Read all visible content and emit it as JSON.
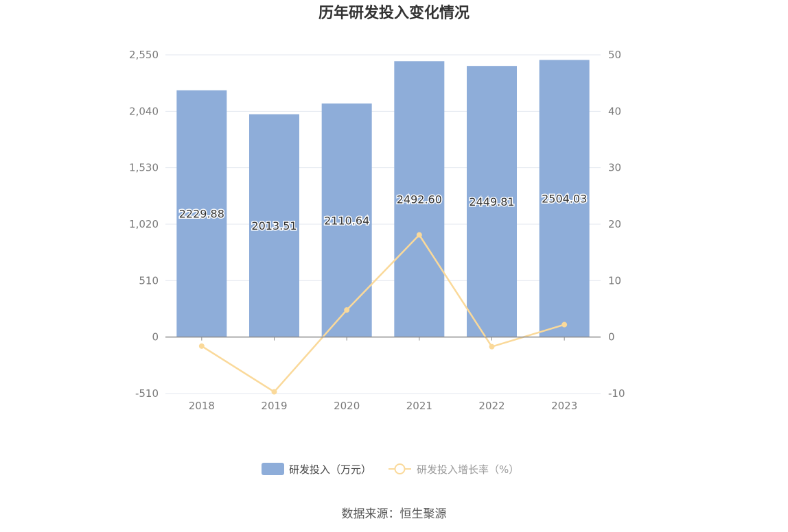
{
  "chart_data": {
    "type": "bar",
    "title": "历年研发投入变化情况",
    "categories": [
      "2018",
      "2019",
      "2020",
      "2021",
      "2022",
      "2023"
    ],
    "series": [
      {
        "name": "研发投入（万元）",
        "type": "bar",
        "axis": "left",
        "values": [
          2229.88,
          2013.51,
          2110.64,
          2492.6,
          2449.81,
          2504.03
        ],
        "labels": [
          "2229.88",
          "2013.51",
          "2110.64",
          "2492.60",
          "2449.81",
          "2504.03"
        ],
        "color": "#8eadd9"
      },
      {
        "name": "研发投入增长率（%）",
        "type": "line",
        "axis": "right",
        "values": [
          -1.6,
          -9.7,
          4.8,
          18.1,
          -1.7,
          2.2
        ],
        "color": "#fad99a"
      }
    ],
    "y_left": {
      "ylim": [
        -510,
        2550
      ],
      "ticks": [
        "2,550",
        "2,040",
        "1,530",
        "1,020",
        "510",
        "0",
        "-510"
      ],
      "tick_values": [
        2550,
        2040,
        1530,
        1020,
        510,
        0,
        -510
      ]
    },
    "y_right": {
      "ylim": [
        -10,
        50
      ],
      "ticks": [
        "50",
        "40",
        "30",
        "20",
        "10",
        "0",
        "-10"
      ],
      "tick_values": [
        50,
        40,
        30,
        20,
        10,
        0,
        -10
      ]
    },
    "grid": true,
    "legend_position": "bottom-center"
  },
  "source_text": "数据来源：恒生聚源",
  "colors": {
    "bar": "#8eadd9",
    "line": "#fad99a",
    "grid": "#e3e7ef",
    "axis": "#8a8a8a",
    "legend_bar_text": "#444444",
    "legend_line_text": "#999999"
  }
}
